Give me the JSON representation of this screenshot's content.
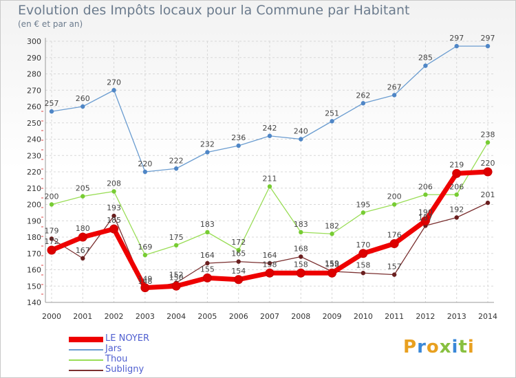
{
  "title": "Evolution des Impôts locaux pour la Commune par Habitant",
  "subtitle": "(en € et par an)",
  "logo_text": "Proxiti",
  "chart_data": {
    "type": "line",
    "title": "Evolution des Impôts locaux pour la Commune par Habitant",
    "subtitle": "(en € et par an)",
    "xlabel": "",
    "ylabel": "",
    "x": [
      "2000",
      "2001",
      "2002",
      "2003",
      "2004",
      "2005",
      "2006",
      "2007",
      "2008",
      "2009",
      "2010",
      "2011",
      "2012",
      "2013",
      "2014"
    ],
    "ylim": [
      140,
      300
    ],
    "yticks": [
      140,
      150,
      160,
      170,
      180,
      190,
      200,
      210,
      220,
      230,
      240,
      250,
      260,
      270,
      280,
      290,
      300
    ],
    "grid": true,
    "legend_position": "bottom-left",
    "series": [
      {
        "name": "LE NOYER",
        "color": "#ee0000",
        "values": [
          172,
          180,
          185,
          149,
          150,
          155,
          154,
          158,
          158,
          158,
          170,
          176,
          190,
          219,
          220
        ],
        "labels": [
          "172",
          "180",
          "185",
          "149",
          "150",
          "155",
          "154",
          "158",
          "158",
          "158",
          "170",
          "176",
          "190",
          "219",
          "220"
        ]
      },
      {
        "name": "Jars",
        "color": "#6a9cd0",
        "values": [
          257,
          260,
          270,
          220,
          222,
          232,
          236,
          242,
          240,
          251,
          262,
          267,
          285,
          297,
          297
        ],
        "labels": [
          "257",
          "260",
          "270",
          "220",
          "222",
          "232",
          "236",
          "242",
          "240",
          "251",
          "262",
          "267",
          "285",
          "297",
          "297"
        ]
      },
      {
        "name": "Thou",
        "color": "#99dd55",
        "values": [
          200,
          205,
          208,
          169,
          175,
          183,
          172,
          211,
          183,
          182,
          195,
          200,
          206,
          206,
          238
        ],
        "labels": [
          "200",
          "205",
          "208",
          "169",
          "175",
          "183",
          "172",
          "211",
          "183",
          "182",
          "195",
          "200",
          "206",
          "206",
          "238"
        ]
      },
      {
        "name": "Subligny",
        "color": "#7a2f2f",
        "values": [
          179,
          167,
          193,
          148,
          152,
          164,
          165,
          164,
          168,
          159,
          158,
          157,
          187,
          192,
          201
        ],
        "labels": [
          "179",
          "167",
          "193",
          "148",
          "152",
          "164",
          "165",
          "164",
          "168",
          "159",
          "158",
          "157",
          "187",
          "192",
          "201"
        ]
      }
    ]
  }
}
